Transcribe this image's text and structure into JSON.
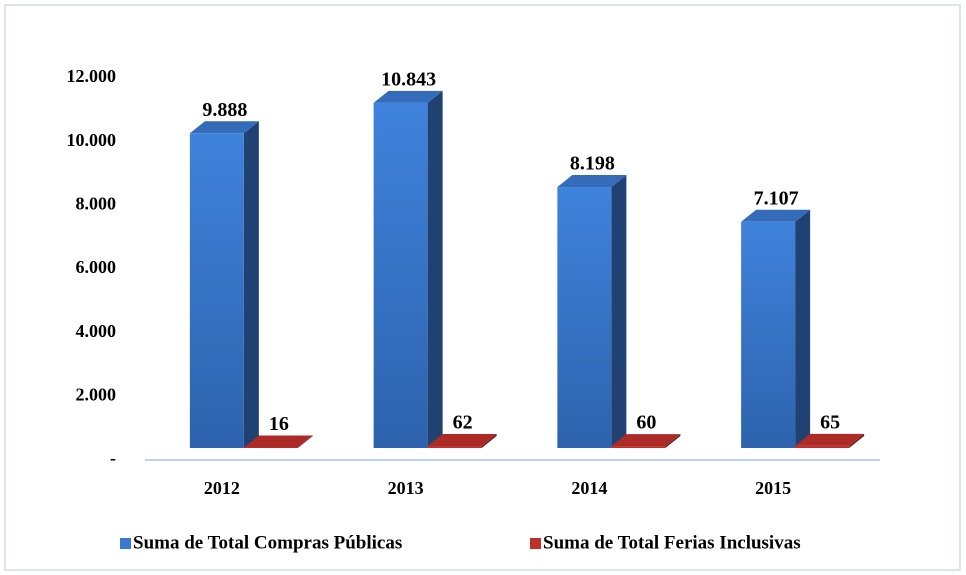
{
  "chart_data": {
    "type": "bar3d",
    "categories": [
      "2012",
      "2013",
      "2014",
      "2015"
    ],
    "series": [
      {
        "name": "Suma de Total Compras Públicas",
        "color": "#3b78cf",
        "values": [
          9888,
          10843,
          8198,
          7107
        ],
        "value_labels": [
          "9.888",
          "10.843",
          "8.198",
          "7.107"
        ]
      },
      {
        "name": "Suma de Total Ferias Inclusivas",
        "color": "#c0302b",
        "values": [
          16,
          62,
          60,
          65
        ]
      }
    ],
    "ylim": [
      0,
      12000
    ],
    "yticks": [
      {
        "value": 0,
        "label": "-"
      },
      {
        "value": 2000,
        "label": "2.000"
      },
      {
        "value": 4000,
        "label": "4.000"
      },
      {
        "value": 6000,
        "label": "6.000"
      },
      {
        "value": 8000,
        "label": "8.000"
      },
      {
        "value": 10000,
        "label": "10.000"
      },
      {
        "value": 12000,
        "label": "12.000"
      }
    ],
    "legend": "bottom"
  }
}
